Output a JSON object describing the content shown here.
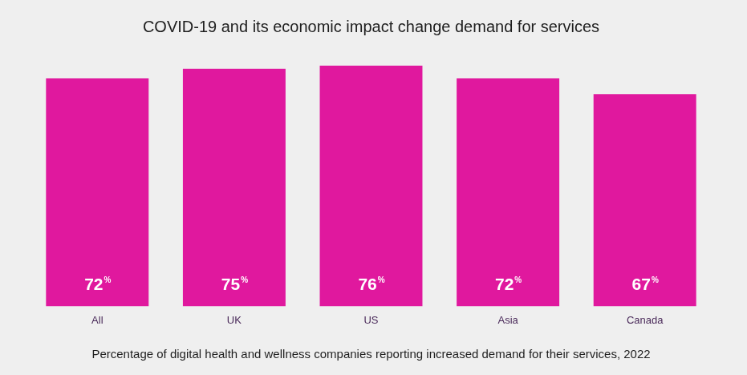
{
  "chart_data": {
    "type": "bar",
    "title": "COVID-19 and its economic impact change demand for services",
    "subtitle": "Percentage of digital health and wellness companies reporting increased demand for their services, 2022",
    "categories": [
      "All",
      "UK",
      "US",
      "Asia",
      "Canada"
    ],
    "values": [
      72,
      75,
      76,
      72,
      67
    ],
    "value_labels": [
      "72%",
      "75%",
      "76%",
      "72%",
      "67%"
    ],
    "data_labels": true,
    "color": "#e0189e",
    "ylim": [
      0,
      80
    ],
    "grid": false,
    "tick_labels": "x"
  }
}
